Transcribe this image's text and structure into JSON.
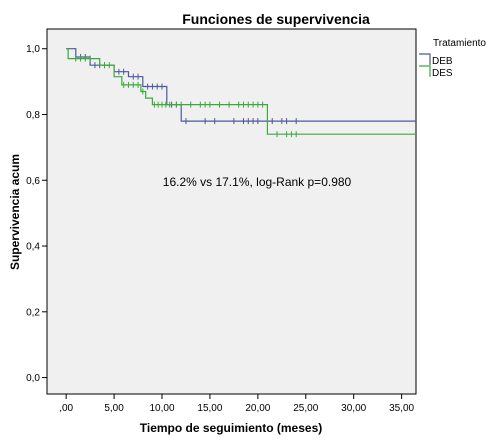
{
  "chart_data": {
    "type": "line",
    "subtype": "kaplan-meier",
    "title": "Funciones de supervivencia",
    "xlabel": "Tiempo de seguimiento (meses)",
    "ylabel": "Supervivencia acum",
    "xlim": [
      -2,
      36.5
    ],
    "ylim": [
      -0.05,
      1.06
    ],
    "x_ticks": [
      0,
      5,
      10,
      15,
      20,
      25,
      30,
      35
    ],
    "x_tick_labels": [
      ",00",
      "5,00",
      "10,00",
      "15,00",
      "20,00",
      "25,00",
      "30,00",
      "35,00"
    ],
    "y_ticks": [
      0,
      0.2,
      0.4,
      0.6,
      0.8,
      1.0
    ],
    "y_tick_labels": [
      "0,0",
      "0,2",
      "0,4",
      "0,6",
      "0,8",
      "1,0"
    ],
    "grid": false,
    "background": "#f0f0f0",
    "legend": {
      "title": "Tratamiento",
      "position": "right"
    },
    "annotation": "16.2% vs 17.1%, log-Rank p=0.980",
    "series": [
      {
        "name": "DEB",
        "color": "#4a5a9a",
        "x": [
          0,
          1.0,
          2.5,
          5.0,
          6.5,
          8.0,
          10.5,
          12.0,
          36.5
        ],
        "y": [
          1.0,
          0.975,
          0.95,
          0.93,
          0.915,
          0.885,
          0.83,
          0.78,
          0.78
        ],
        "censored": [
          {
            "x": 1.5,
            "y": 0.975
          },
          {
            "x": 2.0,
            "y": 0.975
          },
          {
            "x": 3.0,
            "y": 0.95
          },
          {
            "x": 3.5,
            "y": 0.95
          },
          {
            "x": 4.0,
            "y": 0.95
          },
          {
            "x": 5.5,
            "y": 0.93
          },
          {
            "x": 6.0,
            "y": 0.93
          },
          {
            "x": 7.0,
            "y": 0.915
          },
          {
            "x": 7.5,
            "y": 0.915
          },
          {
            "x": 8.5,
            "y": 0.885
          },
          {
            "x": 9.0,
            "y": 0.885
          },
          {
            "x": 9.5,
            "y": 0.885
          },
          {
            "x": 10.0,
            "y": 0.885
          },
          {
            "x": 11.0,
            "y": 0.83
          },
          {
            "x": 11.5,
            "y": 0.83
          },
          {
            "x": 12.5,
            "y": 0.78
          },
          {
            "x": 14.5,
            "y": 0.78
          },
          {
            "x": 15.5,
            "y": 0.78
          },
          {
            "x": 17.5,
            "y": 0.78
          },
          {
            "x": 18.5,
            "y": 0.78
          },
          {
            "x": 19.0,
            "y": 0.78
          },
          {
            "x": 19.5,
            "y": 0.78
          },
          {
            "x": 20.0,
            "y": 0.78
          },
          {
            "x": 21.5,
            "y": 0.78
          },
          {
            "x": 22.5,
            "y": 0.78
          },
          {
            "x": 23.0,
            "y": 0.78
          },
          {
            "x": 24.0,
            "y": 0.78
          }
        ]
      },
      {
        "name": "DES",
        "color": "#3aaa3a",
        "x": [
          0,
          0.2,
          3.5,
          5.0,
          5.8,
          6.8,
          7.8,
          8.3,
          9.0,
          21.0,
          36.5
        ],
        "y": [
          1.0,
          0.97,
          0.95,
          0.915,
          0.89,
          0.89,
          0.87,
          0.85,
          0.83,
          0.74,
          0.74
        ],
        "censored": [
          {
            "x": 1.0,
            "y": 0.97
          },
          {
            "x": 1.5,
            "y": 0.97
          },
          {
            "x": 2.0,
            "y": 0.97
          },
          {
            "x": 2.5,
            "y": 0.97
          },
          {
            "x": 4.0,
            "y": 0.95
          },
          {
            "x": 4.5,
            "y": 0.95
          },
          {
            "x": 6.0,
            "y": 0.89
          },
          {
            "x": 6.5,
            "y": 0.89
          },
          {
            "x": 7.0,
            "y": 0.89
          },
          {
            "x": 7.5,
            "y": 0.89
          },
          {
            "x": 8.0,
            "y": 0.87
          },
          {
            "x": 9.2,
            "y": 0.83
          },
          {
            "x": 9.6,
            "y": 0.83
          },
          {
            "x": 10.0,
            "y": 0.83
          },
          {
            "x": 10.4,
            "y": 0.83
          },
          {
            "x": 10.8,
            "y": 0.83
          },
          {
            "x": 11.5,
            "y": 0.83
          },
          {
            "x": 12.0,
            "y": 0.83
          },
          {
            "x": 13.0,
            "y": 0.83
          },
          {
            "x": 14.0,
            "y": 0.83
          },
          {
            "x": 14.5,
            "y": 0.83
          },
          {
            "x": 15.0,
            "y": 0.83
          },
          {
            "x": 16.0,
            "y": 0.83
          },
          {
            "x": 17.0,
            "y": 0.83
          },
          {
            "x": 18.0,
            "y": 0.83
          },
          {
            "x": 18.5,
            "y": 0.83
          },
          {
            "x": 19.0,
            "y": 0.83
          },
          {
            "x": 19.5,
            "y": 0.83
          },
          {
            "x": 20.0,
            "y": 0.83
          },
          {
            "x": 20.5,
            "y": 0.83
          },
          {
            "x": 22.0,
            "y": 0.74
          },
          {
            "x": 23.0,
            "y": 0.74
          },
          {
            "x": 23.5,
            "y": 0.74
          },
          {
            "x": 24.0,
            "y": 0.74
          }
        ]
      }
    ]
  }
}
